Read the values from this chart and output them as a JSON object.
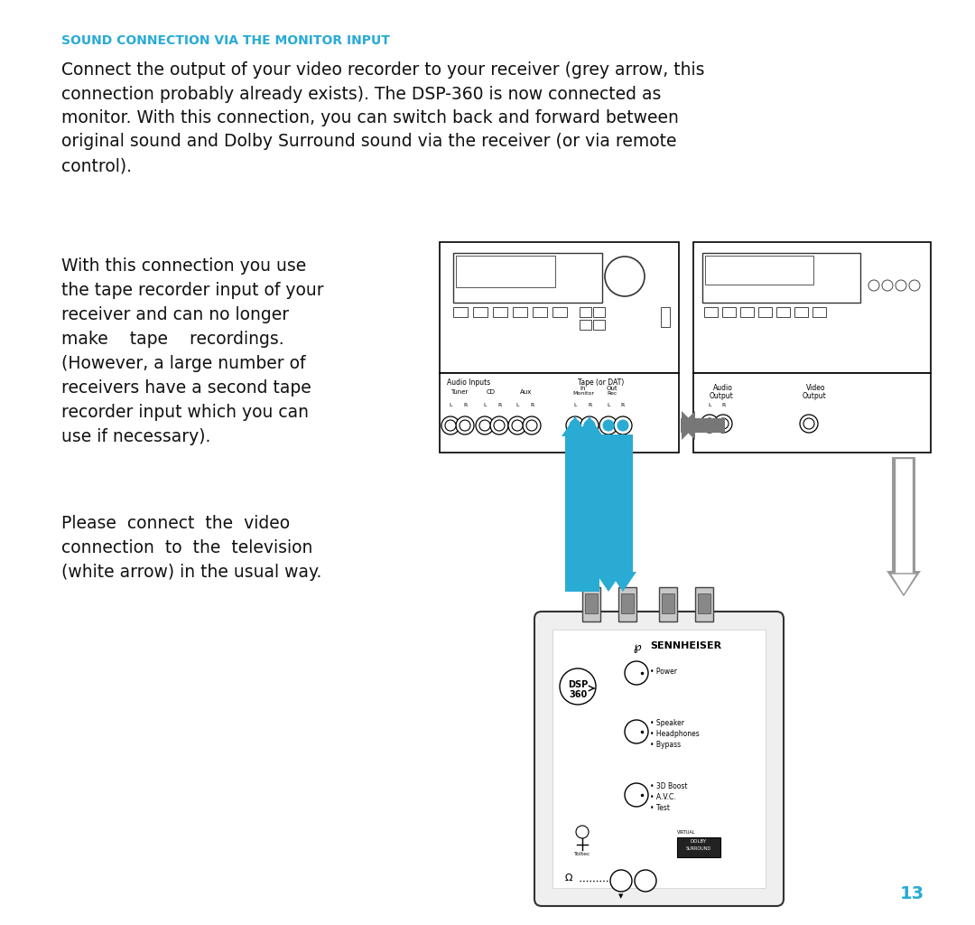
{
  "title": "SOUND CONNECTION VIA THE MONITOR INPUT",
  "title_color": "#29ABD4",
  "background_color": "#FFFFFF",
  "page_number": "13",
  "page_number_color": "#29ABD4",
  "body_text_color": "#111111",
  "paragraph1": "Connect the output of your video recorder to your receiver (grey arrow, this\nconnection probably already exists). The DSP-360 is now connected as\nmonitor. With this connection, you can switch back and forward between\noriginal sound and Dolby Surround sound via the receiver (or via remote\ncontrol).",
  "paragraph2_lines": [
    "With this connection you use",
    "the tape recorder input of your",
    "receiver and can no longer",
    "make    tape    recordings.",
    "(However, a large number of",
    "receivers have a second tape",
    "recorder input which you can",
    "use if necessary)."
  ],
  "paragraph3_lines": [
    "Please  connect  the  video",
    "connection  to  the  television",
    "(white arrow) in the usual way."
  ],
  "arrow_blue": "#29ABD4",
  "arrow_gray": "#777777",
  "arrow_white_fill": "#FFFFFF",
  "arrow_white_stroke": "#999999"
}
